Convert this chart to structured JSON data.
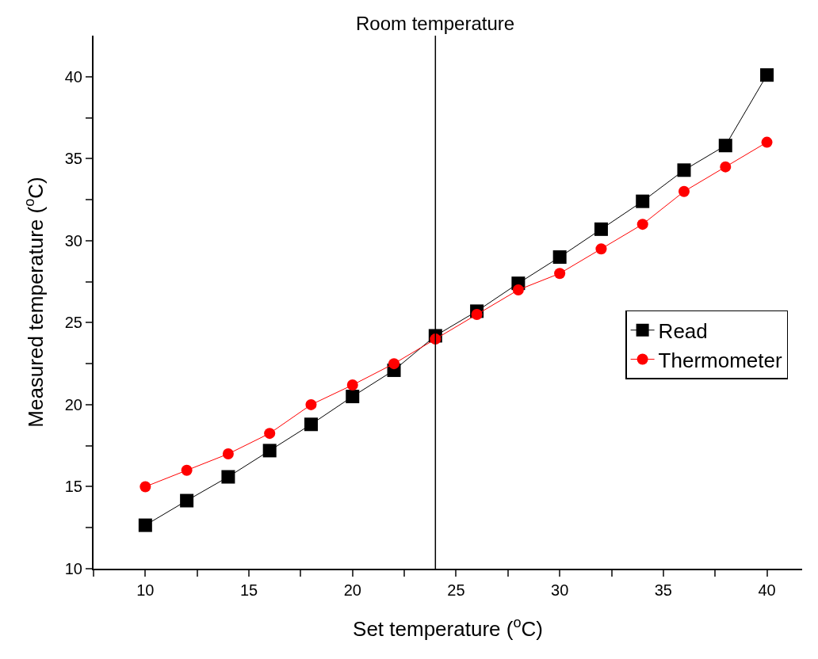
{
  "chart_data": {
    "type": "line",
    "xlabel": "Set temperature ($^{o}$C)",
    "ylabel": "Measured temperature ($^{o}$C)",
    "x": [
      10,
      12,
      14,
      16,
      18,
      20,
      22,
      24,
      26,
      28,
      30,
      32,
      34,
      36,
      38,
      40
    ],
    "series": [
      {
        "name": "Read",
        "color": "#000000",
        "marker": "square",
        "values": [
          12.65,
          14.15,
          15.6,
          17.2,
          18.8,
          20.5,
          22.1,
          24.2,
          25.7,
          27.4,
          29.0,
          30.7,
          32.4,
          34.3,
          35.8,
          40.1
        ]
      },
      {
        "name": "Thermometer",
        "color": "#ff0000",
        "marker": "circle",
        "values": [
          15.0,
          16.0,
          17.0,
          18.25,
          20.0,
          21.2,
          22.5,
          24.0,
          25.5,
          27.0,
          28.0,
          29.5,
          31.0,
          33.0,
          34.5,
          36.0
        ]
      }
    ],
    "xlim": [
      7.5,
      41.7
    ],
    "ylim": [
      10,
      42.5
    ],
    "xticks": [
      {
        "value": 7.5,
        "label": null
      },
      10,
      {
        "value": 12.5,
        "label": null
      },
      15,
      {
        "value": 17.5,
        "label": null
      },
      20,
      {
        "value": 22.5,
        "label": null
      },
      25,
      {
        "value": 27.5,
        "label": null
      },
      30,
      {
        "value": 32.5,
        "label": null
      },
      35,
      {
        "value": 37.5,
        "label": null
      },
      40
    ],
    "yticks": [
      10,
      {
        "value": 12.5,
        "label": null
      },
      15,
      {
        "value": 17.5,
        "label": null
      },
      20,
      {
        "value": 22.5,
        "label": null
      },
      25,
      {
        "value": 27.5,
        "label": null
      },
      30,
      {
        "value": 32.5,
        "label": null
      },
      35,
      {
        "value": 37.5,
        "label": null
      },
      40
    ],
    "ref_lines": [
      {
        "axis": "x",
        "value": 24,
        "label": "Room temperature",
        "color": "#000000"
      }
    ],
    "grid": false,
    "legend": "right",
    "line_style": "solid"
  }
}
